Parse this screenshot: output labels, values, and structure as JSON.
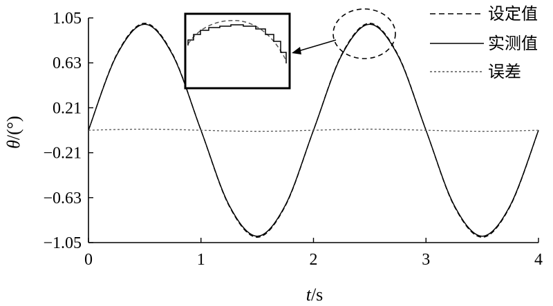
{
  "chart_data": {
    "type": "line",
    "xlabel_var": "t",
    "xlabel_unit": "/s",
    "ylabel_var": "θ",
    "ylabel_unit": "/(°)",
    "xlim": [
      0,
      4
    ],
    "ylim": [
      -1.05,
      1.05
    ],
    "x_ticks": [
      "0",
      "1",
      "2",
      "3",
      "4"
    ],
    "y_ticks": [
      "1.05",
      "0.63",
      "0.21",
      "−0.21",
      "−0.63",
      "−1.05"
    ],
    "y_tick_values": [
      1.05,
      0.63,
      0.21,
      -0.21,
      -0.63,
      -1.05
    ],
    "grid": false,
    "legend_position": "top-right",
    "series": [
      {
        "name": "设定值",
        "style": "dashed",
        "x": [
          0,
          0.25,
          0.5,
          0.75,
          1.0,
          1.25,
          1.5,
          1.75,
          2.0,
          2.25,
          2.5,
          2.75,
          3.0,
          3.25,
          3.5,
          3.75,
          4.0
        ],
        "values": [
          0,
          0.707,
          1.0,
          0.707,
          0,
          -0.707,
          -1.0,
          -0.707,
          0,
          0.707,
          1.0,
          0.707,
          0,
          -0.707,
          -1.0,
          -0.707,
          0
        ]
      },
      {
        "name": "实测值",
        "style": "solid",
        "x": [
          0,
          0.25,
          0.5,
          0.75,
          1.0,
          1.25,
          1.5,
          1.75,
          2.0,
          2.25,
          2.5,
          2.75,
          3.0,
          3.25,
          3.5,
          3.75,
          4.0
        ],
        "values": [
          0,
          0.7,
          0.99,
          0.7,
          0,
          -0.7,
          -0.99,
          -0.7,
          0,
          0.7,
          0.99,
          0.7,
          0,
          -0.7,
          -0.99,
          -0.7,
          0
        ]
      },
      {
        "name": "误差",
        "style": "dotted",
        "x": [
          0,
          0.25,
          0.5,
          0.75,
          1.0,
          1.25,
          1.5,
          1.75,
          2.0,
          2.25,
          2.5,
          2.75,
          3.0,
          3.25,
          3.5,
          3.75,
          4.0
        ],
        "values": [
          0,
          0.007,
          0.01,
          0.007,
          0,
          -0.007,
          -0.01,
          -0.007,
          0,
          0.007,
          0.01,
          0.007,
          0,
          -0.007,
          -0.01,
          -0.007,
          0
        ]
      }
    ],
    "annotations": [
      {
        "type": "zoom-inset",
        "target_x": 2.5,
        "target_y": 1.0
      }
    ],
    "colors": {
      "line": "#000000",
      "error": "#555555"
    }
  }
}
